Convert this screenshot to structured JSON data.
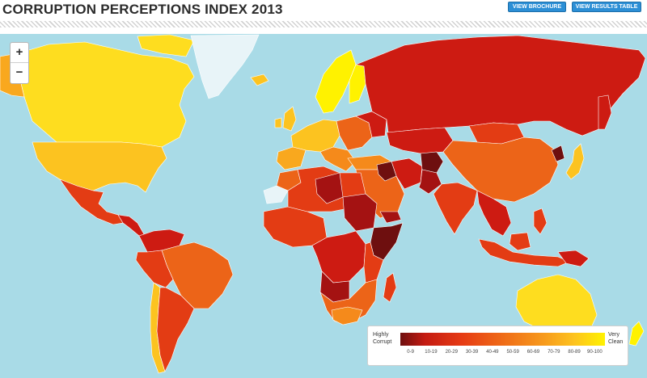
{
  "header": {
    "title": "CORRUPTION PERCEPTIONS INDEX 2013",
    "brochure_label": "VIEW BROCHURE",
    "results_label": "VIEW RESULTS TABLE"
  },
  "zoom": {
    "in_label": "+",
    "out_label": "−"
  },
  "legend": {
    "left_label_1": "Highly",
    "left_label_2": "Corrupt",
    "right_label_1": "Very",
    "right_label_2": "Clean",
    "ranges": [
      "0-9",
      "10-19",
      "20-29",
      "30-39",
      "40-49",
      "50-59",
      "60-69",
      "70-79",
      "80-89",
      "90-100"
    ]
  },
  "colors": {
    "water": "#a9dbe7",
    "score_0_9": "#6e0f0f",
    "score_10_19": "#a41212",
    "score_20_29": "#cd1b12",
    "score_30_39": "#e33c14",
    "score_40_49": "#ec6418",
    "score_50_59": "#f58a1b",
    "score_60_69": "#f9a81e",
    "score_70_79": "#fcc320",
    "score_80_89": "#fedd1f",
    "score_90_100": "#fff200",
    "no_data": "#e8f4f8"
  },
  "regions": [
    {
      "id": "canada",
      "score_range": "80-89"
    },
    {
      "id": "usa",
      "score_range": "70-79"
    },
    {
      "id": "mexico",
      "score_range": "30-39"
    },
    {
      "id": "brazil",
      "score_range": "40-49"
    },
    {
      "id": "argentina",
      "score_range": "30-39"
    },
    {
      "id": "venezuela",
      "score_range": "20-29"
    },
    {
      "id": "chile",
      "score_range": "70-79"
    },
    {
      "id": "greenland",
      "score_range": "no-data"
    },
    {
      "id": "scandinavia",
      "score_range": "80-89"
    },
    {
      "id": "western-europe",
      "score_range": "70-79"
    },
    {
      "id": "russia",
      "score_range": "20-29"
    },
    {
      "id": "china",
      "score_range": "40-49"
    },
    {
      "id": "india",
      "score_range": "30-39"
    },
    {
      "id": "africa-north",
      "score_range": "30-39"
    },
    {
      "id": "africa-central",
      "score_range": "20-29"
    },
    {
      "id": "somalia",
      "score_range": "0-9"
    },
    {
      "id": "southern-africa",
      "score_range": "40-49"
    },
    {
      "id": "middle-east",
      "score_range": "40-49"
    },
    {
      "id": "afghanistan",
      "score_range": "0-9"
    },
    {
      "id": "japan",
      "score_range": "70-79"
    },
    {
      "id": "indonesia",
      "score_range": "30-39"
    },
    {
      "id": "australia",
      "score_range": "80-89"
    },
    {
      "id": "madagascar",
      "score_range": "20-29"
    },
    {
      "id": "new-zealand",
      "score_range": "90-100"
    }
  ]
}
